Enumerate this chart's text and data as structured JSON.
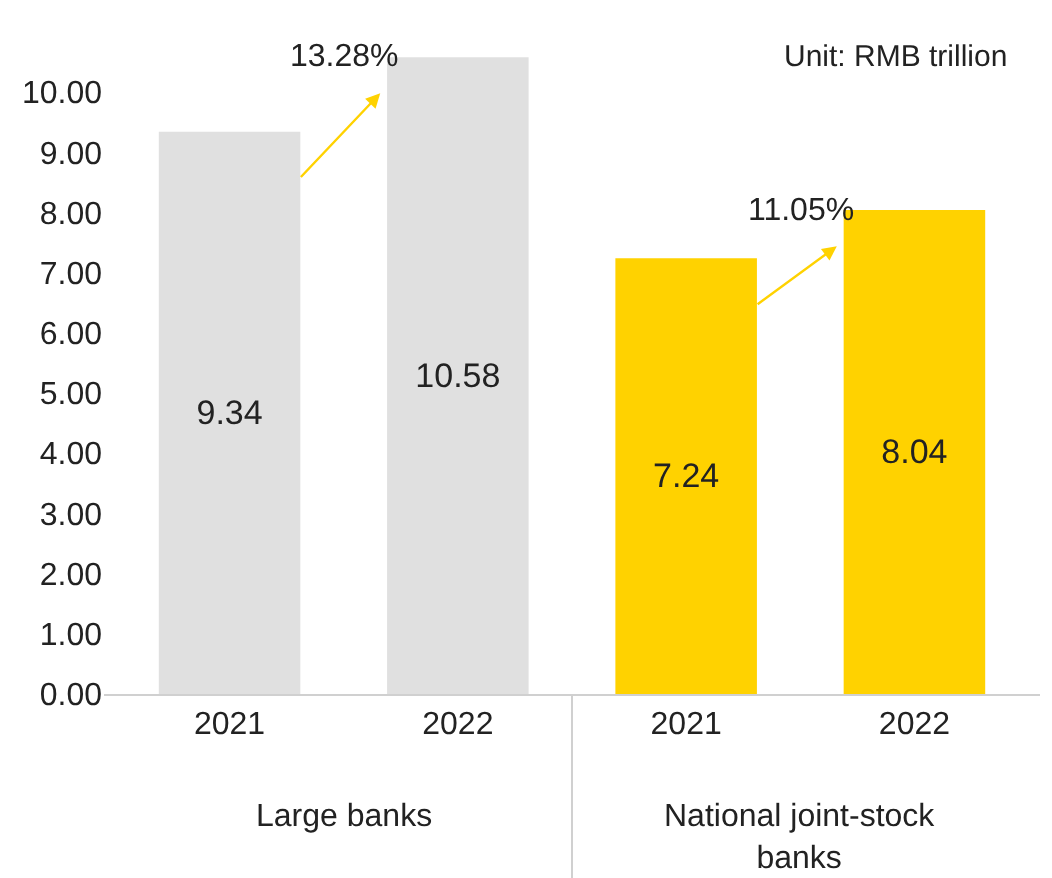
{
  "chart_data": {
    "type": "bar",
    "categories": [
      "2021",
      "2022",
      "2021",
      "2022"
    ],
    "values": [
      9.34,
      10.58,
      7.24,
      8.04
    ],
    "colors": [
      "#e0e0e0",
      "#e0e0e0",
      "#ffd200",
      "#ffd200"
    ],
    "data_labels": true,
    "ylim": [
      0,
      10.6
    ],
    "yticks": [
      {
        "value": 0,
        "label": "0.00"
      },
      {
        "value": 1,
        "label": "1.00"
      },
      {
        "value": 2,
        "label": "2.00"
      },
      {
        "value": 3,
        "label": "3.00"
      },
      {
        "value": 4,
        "label": "4.00"
      },
      {
        "value": 5,
        "label": "5.00"
      },
      {
        "value": 6,
        "label": "6.00"
      },
      {
        "value": 7,
        "label": "7.00"
      },
      {
        "value": 8,
        "label": "8.00"
      },
      {
        "value": 9,
        "label": "9.00"
      },
      {
        "value": 10,
        "label": "10.00"
      }
    ],
    "grid": false,
    "annotations": [
      "Unit: RMB trillion",
      "13.28%",
      "11.05%",
      "Large banks",
      "National joint-stock banks"
    ]
  }
}
